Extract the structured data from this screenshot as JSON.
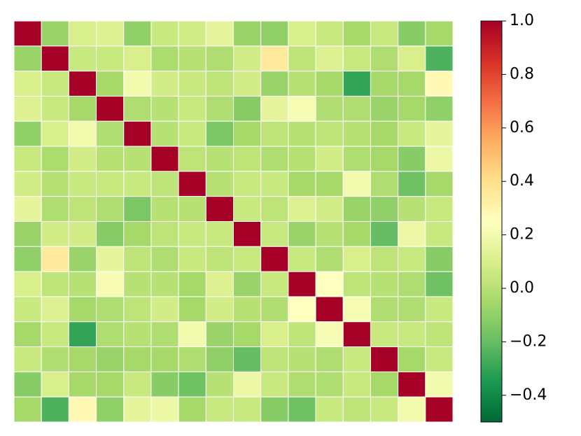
{
  "chart_data": {
    "type": "heatmap",
    "colormap": "RdYlGn_r",
    "grid_color": "#ffffff",
    "z": [
      [
        1,
        -0.08,
        0.1,
        0.12,
        -0.1,
        0.05,
        0.08,
        0.15,
        -0.08,
        -0.1,
        0.1,
        0.05,
        -0.05,
        0.05,
        -0.12,
        -0.05
      ],
      [
        -0.08,
        1,
        0.05,
        0.05,
        0.1,
        -0.03,
        0.0,
        -0.02,
        0.08,
        0.35,
        0.02,
        0.12,
        0.05,
        -0.02,
        0.1,
        -0.25
      ],
      [
        0.1,
        0.05,
        1,
        -0.05,
        0.2,
        0.08,
        0.05,
        0.02,
        0.08,
        -0.08,
        0.0,
        -0.05,
        -0.3,
        -0.05,
        -0.05,
        0.28
      ],
      [
        0.12,
        0.05,
        -0.05,
        1,
        -0.02,
        0.0,
        0.05,
        -0.02,
        -0.12,
        0.15,
        0.22,
        -0.02,
        -0.02,
        -0.08,
        -0.05,
        -0.1
      ],
      [
        -0.1,
        0.1,
        0.2,
        -0.02,
        1,
        0.0,
        0.05,
        -0.15,
        -0.05,
        0.02,
        0.0,
        0.02,
        0.0,
        -0.05,
        0.05,
        0.15
      ],
      [
        0.05,
        -0.03,
        0.08,
        0.0,
        0.0,
        1,
        0.02,
        0.0,
        0.02,
        -0.02,
        0.0,
        0.08,
        -0.02,
        -0.05,
        -0.12,
        0.18
      ],
      [
        0.08,
        0.0,
        0.05,
        0.05,
        0.05,
        0.02,
        1,
        0.0,
        0.05,
        0.05,
        -0.05,
        -0.05,
        0.2,
        -0.02,
        -0.18,
        -0.05
      ],
      [
        0.15,
        -0.02,
        0.02,
        -0.02,
        -0.15,
        0.0,
        0.0,
        1,
        0.05,
        0.02,
        0.12,
        0.08,
        -0.08,
        -0.1,
        0.0,
        0.05
      ],
      [
        -0.08,
        0.08,
        0.08,
        -0.12,
        -0.05,
        0.02,
        0.05,
        0.05,
        1,
        0.05,
        -0.08,
        0.0,
        -0.05,
        -0.2,
        0.18,
        0.05
      ],
      [
        -0.1,
        0.35,
        -0.08,
        0.15,
        0.02,
        -0.02,
        0.05,
        0.02,
        0.05,
        1,
        0.05,
        -0.02,
        0.1,
        0.02,
        0.05,
        -0.12
      ],
      [
        0.1,
        0.02,
        0.0,
        0.22,
        0.0,
        0.0,
        -0.05,
        0.12,
        -0.08,
        0.05,
        1,
        0.25,
        0.02,
        0.0,
        -0.02,
        -0.18
      ],
      [
        0.05,
        0.12,
        -0.05,
        -0.02,
        0.02,
        0.08,
        -0.05,
        0.08,
        0.0,
        -0.02,
        0.25,
        1,
        0.22,
        -0.02,
        -0.02,
        0.05
      ],
      [
        -0.05,
        0.05,
        -0.3,
        -0.02,
        0.0,
        -0.02,
        0.2,
        -0.08,
        -0.05,
        0.1,
        0.02,
        0.22,
        1,
        0.05,
        0.05,
        0.02
      ],
      [
        0.05,
        -0.02,
        -0.05,
        -0.08,
        -0.05,
        -0.05,
        -0.02,
        -0.1,
        -0.2,
        0.02,
        0.0,
        -0.02,
        0.05,
        1,
        -0.05,
        0.05
      ],
      [
        -0.12,
        0.1,
        -0.05,
        -0.05,
        0.05,
        -0.12,
        -0.18,
        0.0,
        0.18,
        0.05,
        -0.02,
        -0.02,
        0.05,
        -0.05,
        1,
        0.2
      ],
      [
        -0.05,
        -0.25,
        0.28,
        -0.1,
        0.15,
        0.18,
        -0.05,
        0.05,
        0.05,
        -0.12,
        -0.18,
        0.05,
        0.02,
        0.05,
        0.2,
        1
      ]
    ],
    "zlim": [
      -0.5,
      1.0
    ],
    "colorbar_ticks": [
      {
        "value": -0.4,
        "label": "−0.4"
      },
      {
        "value": -0.2,
        "label": "−0.2"
      },
      {
        "value": 0.0,
        "label": "0.0"
      },
      {
        "value": 0.2,
        "label": "0.2"
      },
      {
        "value": 0.4,
        "label": "0.4"
      },
      {
        "value": 0.6,
        "label": "0.6"
      },
      {
        "value": 0.8,
        "label": "0.8"
      },
      {
        "value": 1.0,
        "label": "1.0"
      }
    ]
  }
}
